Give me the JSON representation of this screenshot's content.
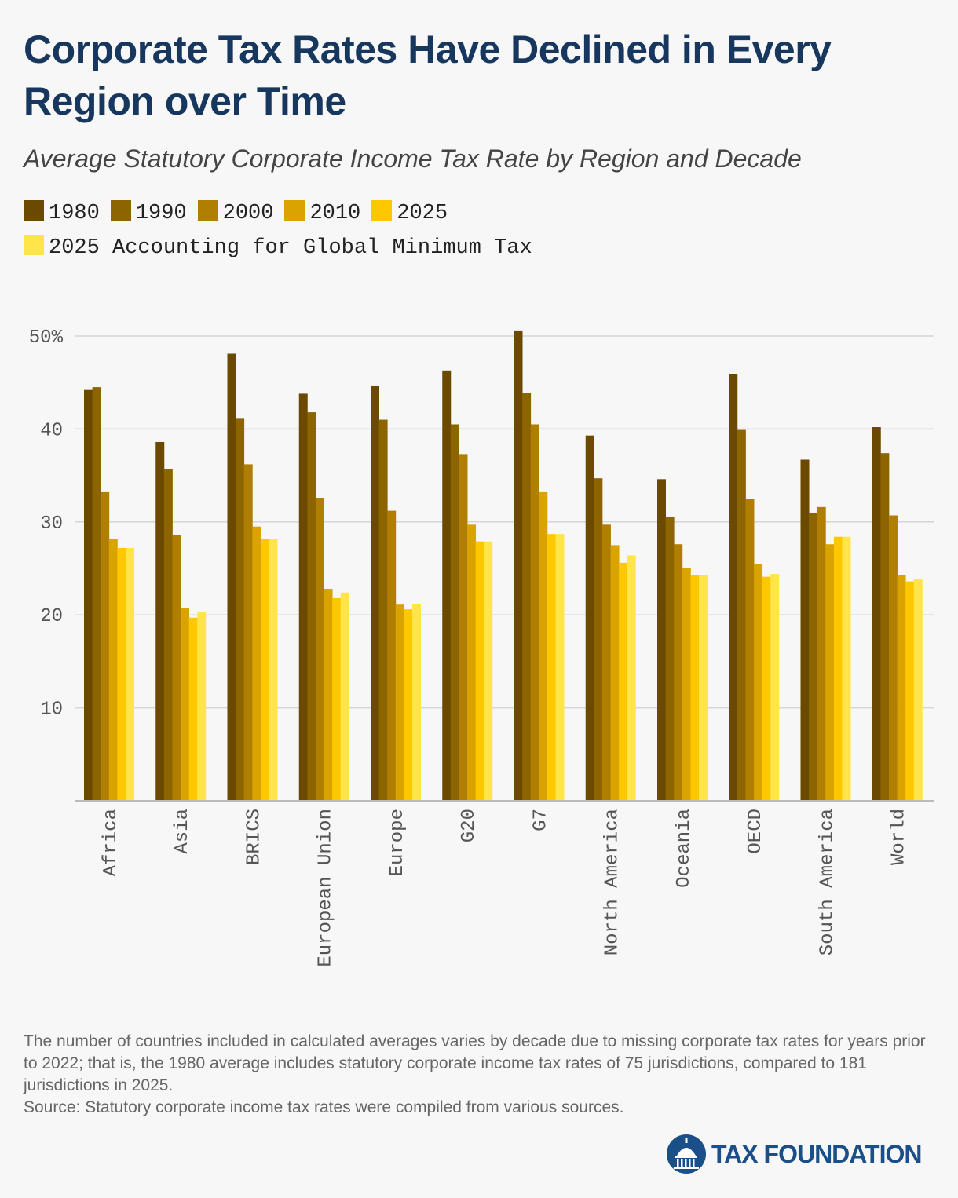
{
  "title": "Corporate Tax Rates Have Declined in Every Region over Time",
  "subtitle": "Average Statutory Corporate Income Tax Rate by Region and Decade",
  "footnote": {
    "note": "The number of countries included in calculated averages varies by decade due to missing corporate tax rates for years prior to 2022; that is, the 1980 average includes statutory corporate income tax rates of 75 jurisdictions, compared to 181 jurisdictions in 2025.",
    "source": "Source: Statutory corporate income tax rates were compiled from various sources."
  },
  "logo": {
    "text": "TAX FOUNDATION",
    "icon": "capitol-dome-icon"
  },
  "colors": {
    "title": "#17375e",
    "grid": "#d6d6d6",
    "axis": "#bbbbbb",
    "logo": "#1b4f8a"
  },
  "chart_data": {
    "type": "bar",
    "title": "Corporate Tax Rates Have Declined in Every Region over Time",
    "subtitle": "Average Statutory Corporate Income Tax Rate by Region and Decade",
    "xlabel": "",
    "ylabel": "",
    "ylim": [
      0,
      50
    ],
    "yticks": [
      10,
      20,
      30,
      40,
      50
    ],
    "ytick_labels": [
      "10",
      "20",
      "30",
      "40",
      "50%"
    ],
    "grid": true,
    "legend_position": "top",
    "categories": [
      "Africa",
      "Asia",
      "BRICS",
      "European Union",
      "Europe",
      "G20",
      "G7",
      "North America",
      "Oceania",
      "OECD",
      "South America",
      "World"
    ],
    "series": [
      {
        "name": "1980",
        "color": "#6b4a00",
        "values": [
          44.2,
          38.6,
          48.1,
          43.8,
          44.6,
          46.3,
          50.6,
          39.3,
          34.6,
          45.9,
          36.7,
          40.2
        ]
      },
      {
        "name": "1990",
        "color": "#8c6400",
        "values": [
          44.5,
          35.7,
          41.1,
          41.8,
          41.0,
          40.5,
          43.9,
          34.7,
          30.5,
          39.9,
          31.0,
          37.4
        ]
      },
      {
        "name": "2000",
        "color": "#b07e00",
        "values": [
          33.2,
          28.6,
          36.2,
          32.6,
          31.2,
          37.3,
          40.5,
          29.7,
          27.6,
          32.5,
          31.6,
          30.7
        ]
      },
      {
        "name": "2010",
        "color": "#d9a300",
        "values": [
          28.2,
          20.7,
          29.5,
          22.8,
          21.1,
          29.7,
          33.2,
          27.5,
          25.0,
          25.5,
          27.6,
          24.3
        ]
      },
      {
        "name": "2025",
        "color": "#fdc800",
        "values": [
          27.2,
          19.7,
          28.2,
          21.8,
          20.6,
          27.9,
          28.7,
          25.6,
          24.3,
          24.1,
          28.4,
          23.6
        ]
      },
      {
        "name": "2025 Accounting for Global Minimum Tax",
        "color": "#ffe54a",
        "values": [
          27.2,
          20.3,
          28.2,
          22.4,
          21.2,
          27.9,
          28.7,
          26.4,
          24.3,
          24.4,
          28.4,
          23.9
        ]
      }
    ]
  }
}
